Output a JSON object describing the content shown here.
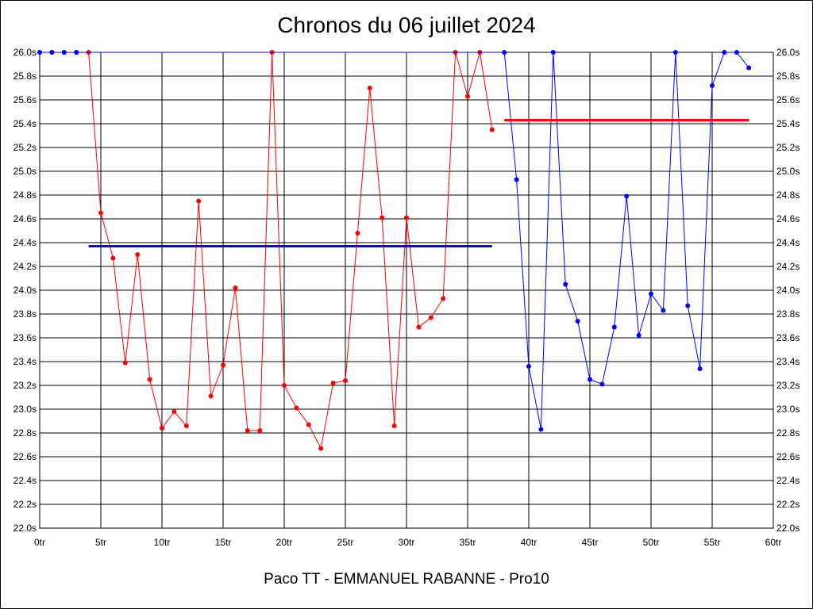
{
  "chart_data": {
    "type": "line",
    "title": "Chronos du 06 juillet 2024",
    "footer": "Paco TT - EMMANUEL RABANNE - Pro10",
    "xlabel": "",
    "ylabel": "",
    "xlim": [
      0,
      60
    ],
    "ylim": [
      22.0,
      26.0
    ],
    "x_ticks": [
      0,
      5,
      10,
      15,
      20,
      25,
      30,
      35,
      40,
      45,
      50,
      55,
      60
    ],
    "x_tick_labels": [
      "0tr",
      "5tr",
      "10tr",
      "15tr",
      "20tr",
      "25tr",
      "30tr",
      "35tr",
      "40tr",
      "45tr",
      "50tr",
      "55tr",
      "60tr"
    ],
    "y_ticks": [
      22.0,
      22.2,
      22.4,
      22.6,
      22.8,
      23.0,
      23.2,
      23.4,
      23.6,
      23.8,
      24.0,
      24.2,
      24.4,
      24.6,
      24.8,
      25.0,
      25.2,
      25.4,
      25.6,
      25.8,
      26.0
    ],
    "y_tick_labels": [
      "22.0s",
      "22.2s",
      "22.4s",
      "22.6s",
      "22.8s",
      "23.0s",
      "23.2s",
      "23.4s",
      "23.6s",
      "23.8s",
      "24.0s",
      "24.2s",
      "24.4s",
      "24.6s",
      "24.8s",
      "25.0s",
      "25.2s",
      "25.4s",
      "25.6s",
      "25.8s",
      "26.0s"
    ],
    "grid": true,
    "series": [
      {
        "color": "#ff0000",
        "x": [
          0,
          1,
          2,
          3,
          4,
          5,
          6,
          7,
          8,
          9,
          10,
          11,
          12,
          13,
          14,
          15,
          16,
          17,
          18,
          19,
          20,
          21,
          22,
          23,
          24,
          25,
          26,
          27,
          28,
          29,
          30,
          31,
          32,
          33,
          34,
          35,
          36,
          37
        ],
        "values": [
          26.0,
          26.0,
          26.0,
          26.0,
          26.0,
          24.65,
          24.27,
          23.39,
          24.3,
          23.25,
          22.84,
          22.98,
          22.86,
          24.75,
          23.11,
          23.37,
          24.02,
          22.82,
          22.82,
          26.0,
          23.2,
          23.01,
          22.87,
          22.67,
          23.22,
          23.24,
          24.48,
          25.7,
          24.61,
          22.86,
          24.61,
          23.69,
          23.77,
          23.93,
          26.0,
          25.63,
          26.0,
          25.35
        ]
      },
      {
        "color": "#0000ff",
        "x": [
          0,
          1,
          2,
          3,
          38,
          39,
          40,
          41,
          42,
          43,
          44,
          45,
          46,
          47,
          48,
          49,
          50,
          51,
          52,
          53,
          54,
          55,
          56,
          57,
          58
        ],
        "values": [
          26.0,
          26.0,
          26.0,
          26.0,
          26.0,
          24.93,
          23.36,
          22.83,
          26.0,
          24.05,
          23.74,
          23.25,
          23.21,
          23.69,
          24.79,
          23.62,
          23.97,
          23.83,
          26.0,
          23.87,
          23.34,
          25.72,
          26.0,
          26.0,
          25.87
        ]
      }
    ],
    "average_lines": [
      {
        "color": "#0000ff",
        "x_start": 4,
        "x_end": 37,
        "value": 24.37
      },
      {
        "color": "#ff0000",
        "x_start": 38,
        "x_end": 58,
        "value": 25.43
      }
    ]
  }
}
